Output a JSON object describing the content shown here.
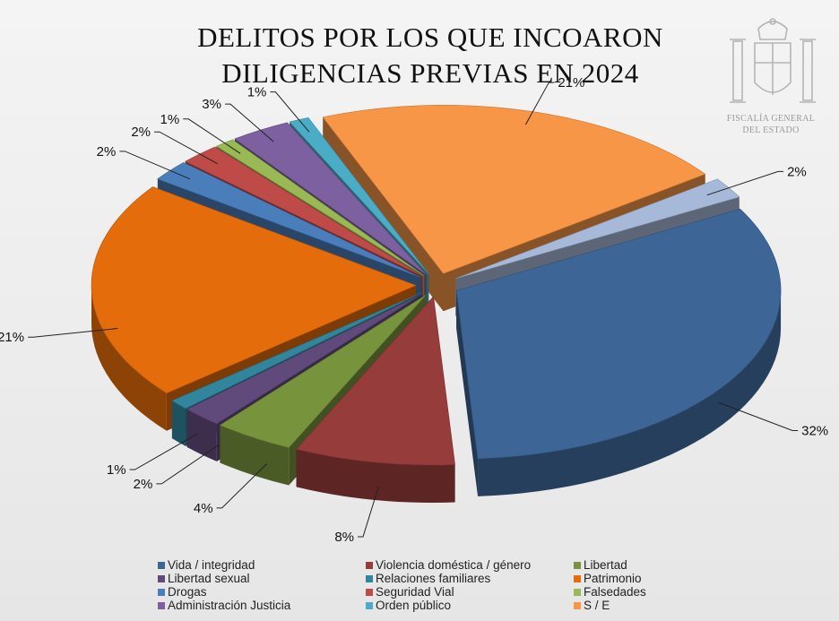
{
  "title_lines": [
    "DELITOS POR LOS QUE INCOARON",
    "DILIGENCIAS PREVIAS EN 2024"
  ],
  "emblem": {
    "icon": "spain-coat-of-arms-icon",
    "lines": [
      "FISCALÍA GENERAL",
      "DEL ESTADO"
    ]
  },
  "chart_data": {
    "type": "pie",
    "style": "3d-exploded",
    "title": "DELITOS POR LOS QUE INCOARON DILIGENCIAS PREVIAS EN 2024",
    "slices": [
      {
        "name": "Vida / integridad",
        "value": 32,
        "label": "32%",
        "color": "#3d6596"
      },
      {
        "name": "Violencia doméstica / género",
        "value": 8,
        "label": "8%",
        "color": "#963c3a"
      },
      {
        "name": "Libertad",
        "value": 4,
        "label": "4%",
        "color": "#77933c"
      },
      {
        "name": "Libertad sexual",
        "value": 2,
        "label": "2%",
        "color": "#604a7b"
      },
      {
        "name": "Relaciones familiares",
        "value": 1,
        "label": "1%",
        "color": "#31859c"
      },
      {
        "name": "Patrimonio",
        "value": 21,
        "label": "21%",
        "color": "#e46c0a"
      },
      {
        "name": "Drogas",
        "value": 2,
        "label": "2%",
        "color": "#4a7ebb"
      },
      {
        "name": "Seguridad Vial",
        "value": 2,
        "label": "2%",
        "color": "#be4b48"
      },
      {
        "name": "Falsedades",
        "value": 1,
        "label": "1%",
        "color": "#98b954"
      },
      {
        "name": "Administración Justicia",
        "value": 3,
        "label": "3%",
        "color": "#7d60a0"
      },
      {
        "name": "Orden público",
        "value": 1,
        "label": "1%",
        "color": "#4bacc6"
      },
      {
        "name": "S / E",
        "value": 21,
        "label": "21%",
        "color": "#f79646"
      },
      {
        "name": "",
        "value": 2,
        "label": "2%",
        "color": "#a7b9d9"
      }
    ],
    "legend_position": "bottom",
    "legend": [
      "Vida / integridad",
      "Violencia doméstica / género",
      "Libertad",
      "Libertad sexual",
      "Relaciones familiares",
      "Patrimonio",
      "Drogas",
      "Seguridad Vial",
      "Falsedades",
      "Administración Justicia",
      "Orden público",
      "S / E"
    ]
  }
}
